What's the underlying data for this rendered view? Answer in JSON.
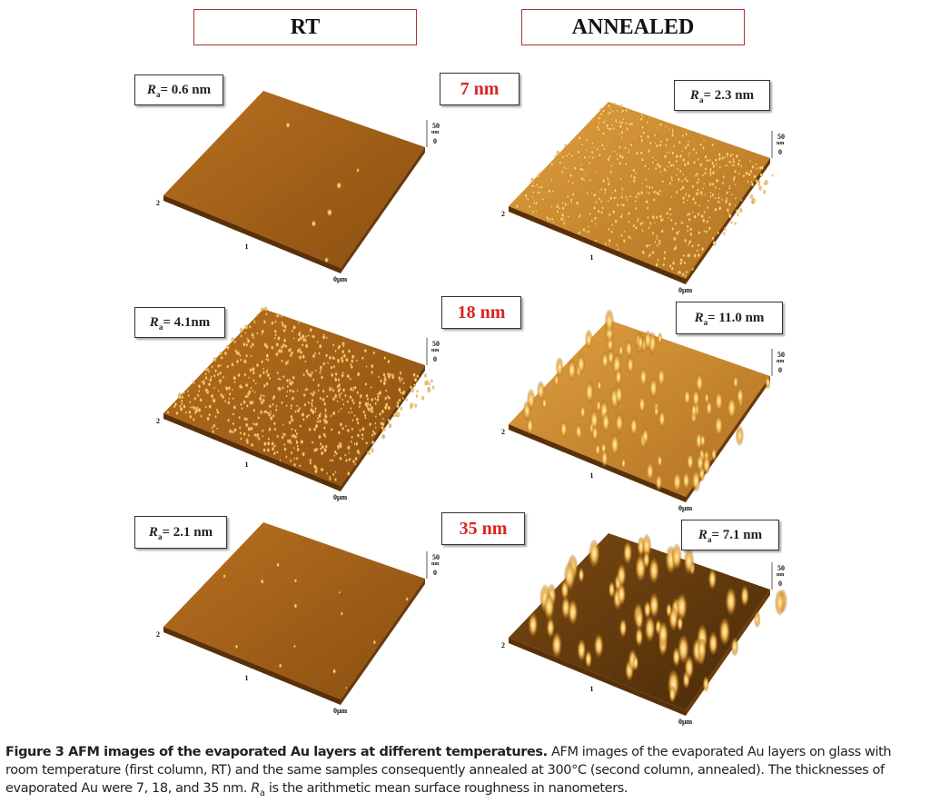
{
  "header": {
    "rt": "RT",
    "annealed": "ANNEALED"
  },
  "rows": [
    {
      "thickness": "7 nm",
      "rt": {
        "ra": {
          "symbol": "R",
          "sub": "a",
          "text": "= 0.6 nm"
        },
        "axis": {
          "z_max": "50",
          "z_unit": "nm",
          "z_min": "0",
          "x_labels": [
            "2",
            "1",
            "0μm"
          ]
        }
      },
      "annealed": {
        "ra": {
          "symbol": "R",
          "sub": "a",
          "text": "= 2.3 nm"
        },
        "axis": {
          "z_max": "50",
          "z_unit": "nm",
          "z_min": "0",
          "x_labels": [
            "2",
            "1",
            "0μm"
          ]
        }
      }
    },
    {
      "thickness": "18 nm",
      "rt": {
        "ra": {
          "symbol": "R",
          "sub": "a",
          "text": "= 4.1nm"
        },
        "axis": {
          "z_max": "50",
          "z_unit": "nm",
          "z_min": "0",
          "x_labels": [
            "2",
            "1",
            "0μm"
          ]
        }
      },
      "annealed": {
        "ra": {
          "symbol": "R",
          "sub": "a",
          "text": "= 11.0 nm"
        },
        "axis": {
          "z_max": "50",
          "z_unit": "nm",
          "z_min": "0",
          "x_labels": [
            "2",
            "1",
            "0μm"
          ]
        }
      }
    },
    {
      "thickness": "35 nm",
      "rt": {
        "ra": {
          "symbol": "R",
          "sub": "a",
          "text": "= 2.1 nm"
        },
        "axis": {
          "z_max": "50",
          "z_unit": "nm",
          "z_min": "0",
          "x_labels": [
            "2",
            "1",
            "0μm"
          ]
        }
      },
      "annealed": {
        "ra": {
          "symbol": "R",
          "sub": "a",
          "text": "= 7.1 nm"
        },
        "axis": {
          "z_max": "50",
          "z_unit": "nm",
          "z_min": "0",
          "x_labels": [
            "2",
            "1",
            "0μm"
          ]
        }
      }
    }
  ],
  "caption": {
    "bold": "Figure 3 AFM images of the evaporated Au layers at different temperatures.",
    "text1": " AFM images of the evaporated Au layers on glass with room temperature (first column, RT) and the same samples consequently annealed at 300°C (second column, annealed). The thicknesses of evaporated Au were 7, 18, and 35 nm. ",
    "symbol": "R",
    "sub": "a",
    "text2": " is the arithmetic mean surface roughness in nanometers."
  }
}
